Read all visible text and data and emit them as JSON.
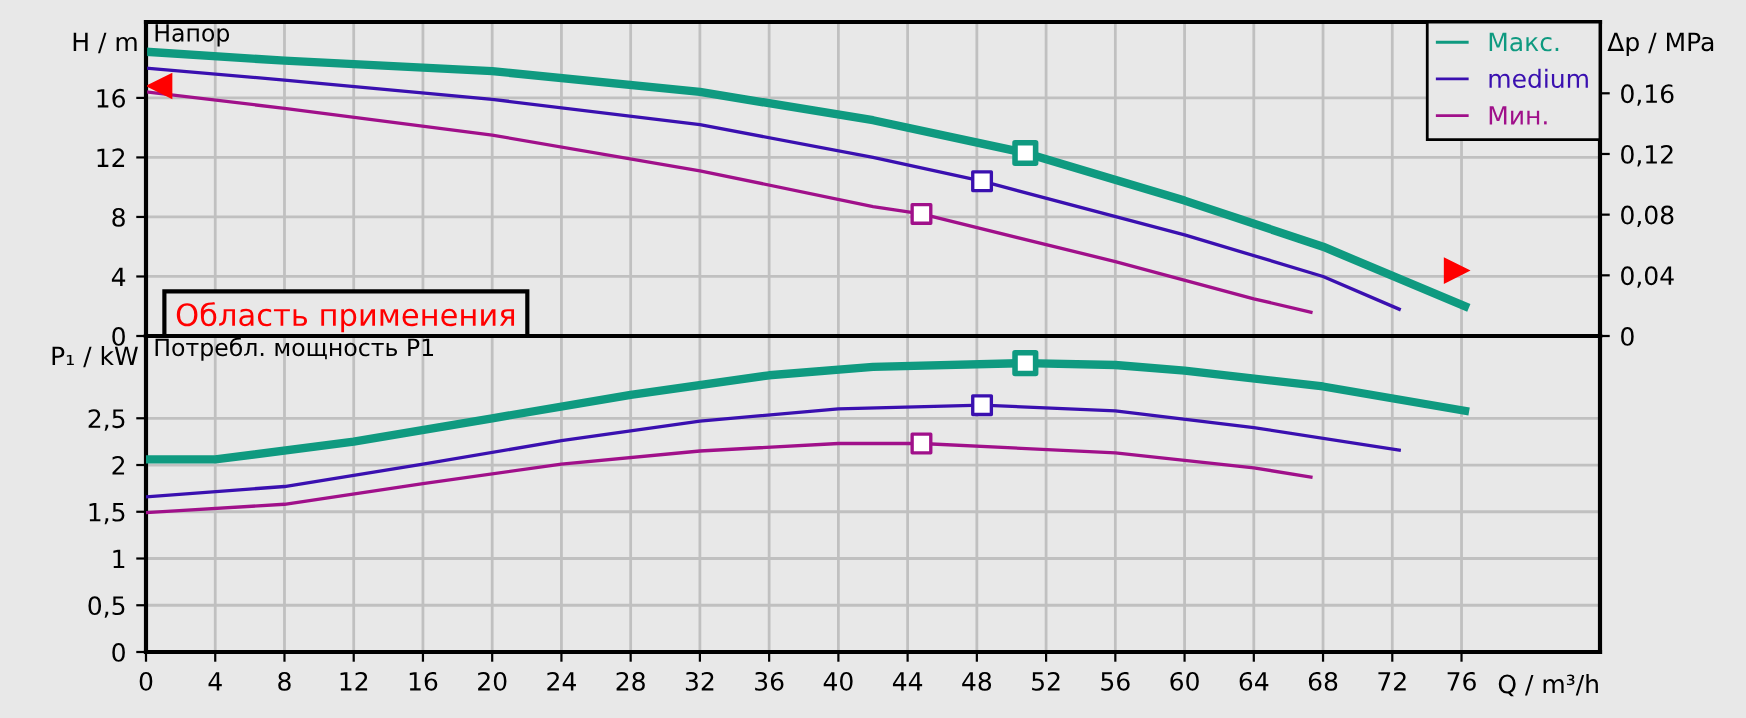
{
  "chart_data": [
    {
      "type": "line",
      "ylabel": "H / m",
      "y2label": "Δp / MPa",
      "xlim": [
        0,
        84
      ],
      "xticks": [
        0,
        4,
        8,
        12,
        16,
        20,
        24,
        28,
        32,
        36,
        40,
        44,
        48,
        52,
        56,
        60,
        64,
        68,
        72,
        76
      ],
      "ylim": [
        0,
        21.1
      ],
      "yticks": [
        0,
        4,
        8,
        12,
        16
      ],
      "y2lim": [
        0,
        0.207
      ],
      "y2ticks": [
        0,
        {
          "value": 0.04,
          "label": "0,04"
        },
        {
          "value": 0.08,
          "label": "0,08"
        },
        {
          "value": 0.12,
          "label": "0,12"
        },
        {
          "value": 0.16,
          "label": "0,16"
        }
      ],
      "tick_labels": "y",
      "grid": true,
      "legend": "top right",
      "annotations": [
        "Напор",
        "Область применения"
      ],
      "series": [
        {
          "name": "Макс.",
          "color": "#0f9a80",
          "x": [
            0,
            8,
            20,
            32,
            42,
            50.8,
            60,
            68,
            76.2
          ],
          "values": [
            19.1,
            18.5,
            17.8,
            16.4,
            14.5,
            12.3,
            9.1,
            6.0,
            2.0
          ]
        },
        {
          "name": "medium",
          "color": "#3a10b0",
          "x": [
            0,
            8,
            20,
            32,
            42,
            48.3,
            60,
            68,
            72.4
          ],
          "values": [
            18.0,
            17.2,
            15.9,
            14.2,
            12.0,
            10.4,
            6.8,
            4.0,
            1.8
          ]
        },
        {
          "name": "Мин.",
          "color": "#a0108a",
          "x": [
            0,
            8,
            20,
            32,
            42,
            44.8,
            56,
            64,
            67.3
          ],
          "values": [
            16.4,
            15.3,
            13.5,
            11.1,
            8.7,
            8.2,
            5.0,
            2.5,
            1.6
          ]
        },
        {
          "type": "scatter",
          "marker": "square",
          "color": "#0f9a80",
          "x": [
            50.8
          ],
          "values": [
            12.3
          ]
        },
        {
          "type": "scatter",
          "marker": "square",
          "color": "#3a10b0",
          "x": [
            48.3
          ],
          "values": [
            10.4
          ]
        },
        {
          "type": "scatter",
          "marker": "square",
          "color": "#a0108a",
          "x": [
            44.8
          ],
          "values": [
            8.2
          ]
        }
      ]
    },
    {
      "type": "line",
      "xlabel": "Q / m³/h",
      "ylabel": "P₁ / kW",
      "xlim": [
        0,
        84
      ],
      "xticks": [
        0,
        4,
        8,
        12,
        16,
        20,
        24,
        28,
        32,
        36,
        40,
        44,
        48,
        52,
        56,
        60,
        64,
        68,
        72,
        76
      ],
      "ylim": [
        0,
        3.38
      ],
      "yticks": [
        0,
        {
          "value": 0.5,
          "label": "0,5"
        },
        1,
        {
          "value": 1.5,
          "label": "1,5"
        },
        2,
        {
          "value": 2.5,
          "label": "2,5"
        }
      ],
      "grid": true,
      "annotations": [
        "Потребл. мощность P1"
      ],
      "series": [
        {
          "color": "#0f9a80",
          "x": [
            0,
            4,
            12,
            20,
            28,
            36,
            42,
            50.8,
            56,
            60,
            68,
            76.2
          ],
          "values": [
            2.06,
            2.06,
            2.25,
            2.5,
            2.75,
            2.96,
            3.05,
            3.09,
            3.07,
            3.01,
            2.84,
            2.58
          ]
        },
        {
          "color": "#3a10b0",
          "x": [
            0,
            8,
            16,
            24,
            32,
            40,
            48.3,
            56,
            64,
            72.4
          ],
          "values": [
            1.66,
            1.77,
            2.01,
            2.26,
            2.47,
            2.6,
            2.64,
            2.58,
            2.4,
            2.16
          ]
        },
        {
          "color": "#a0108a",
          "x": [
            0,
            8,
            16,
            24,
            32,
            40,
            44.8,
            56,
            64,
            67.3
          ],
          "values": [
            1.49,
            1.58,
            1.8,
            2.01,
            2.15,
            2.23,
            2.23,
            2.13,
            1.97,
            1.87
          ]
        },
        {
          "type": "scatter",
          "marker": "square",
          "color": "#0f9a80",
          "x": [
            50.8
          ],
          "values": [
            3.09
          ]
        },
        {
          "type": "scatter",
          "marker": "square",
          "color": "#3a10b0",
          "x": [
            48.3
          ],
          "values": [
            2.64
          ]
        },
        {
          "type": "scatter",
          "marker": "square",
          "color": "#a0108a",
          "x": [
            44.8
          ],
          "values": [
            2.23
          ]
        }
      ]
    }
  ]
}
